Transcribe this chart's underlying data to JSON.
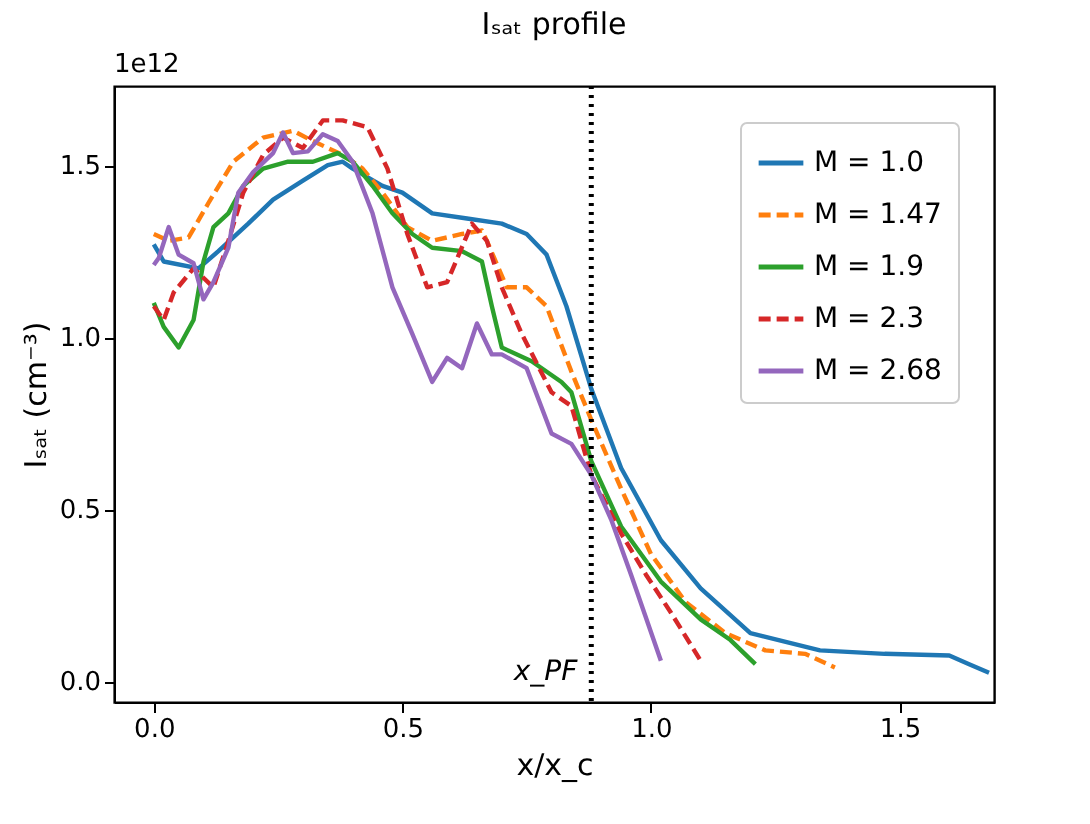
{
  "chart_data": {
    "type": "line",
    "title": "Iₛₐₜ profile",
    "xlabel": "x/x_c",
    "ylabel": "Iₛₐₜ (cm⁻³)",
    "xlim": [
      -0.08,
      1.69
    ],
    "ylim": [
      -0.06,
      1.73
    ],
    "xticks": [
      {
        "value": 0,
        "label": "0.0"
      },
      0.5,
      {
        "value": 1,
        "label": "1.0"
      },
      1.5
    ],
    "yticks": [
      {
        "value": 0,
        "label": "0.0"
      },
      0.5,
      {
        "value": 1,
        "label": "1.0"
      },
      1.5
    ],
    "grid": false,
    "legend": "top right",
    "marker": "none",
    "annotations": [
      "1e12"
    ],
    "ref_lines": [
      {
        "axis": "x",
        "value": 0.88,
        "label": "x_PF",
        "color": "#000000",
        "line_style": "dotted"
      }
    ],
    "series": [
      {
        "name": "M = 1.0",
        "color": "#1f77b4",
        "line_style": "solid",
        "x": [
          0,
          0.02,
          0.09,
          0.13,
          0.19,
          0.24,
          0.3,
          0.35,
          0.38,
          0.4,
          0.46,
          0.5,
          0.56,
          0.63,
          0.7,
          0.75,
          0.79,
          0.83,
          0.88,
          0.94,
          1.02,
          1.1,
          1.2,
          1.34,
          1.47,
          1.6,
          1.64,
          1.68
        ],
        "values": [
          1.27,
          1.22,
          1.2,
          1.25,
          1.33,
          1.4,
          1.455,
          1.5,
          1.51,
          1.49,
          1.44,
          1.42,
          1.36,
          1.345,
          1.33,
          1.3,
          1.24,
          1.09,
          0.85,
          0.62,
          0.41,
          0.27,
          0.14,
          0.09,
          0.08,
          0.075,
          0.05,
          0.025
        ]
      },
      {
        "name": "M = 1.47",
        "color": "#ff7f0e",
        "line_style": "dashed",
        "x": [
          0,
          0.03,
          0.07,
          0.11,
          0.16,
          0.22,
          0.28,
          0.32,
          0.38,
          0.42,
          0.46,
          0.51,
          0.56,
          0.62,
          0.66,
          0.67,
          0.71,
          0.75,
          0.79,
          0.84,
          0.88,
          0.94,
          1.0,
          1.07,
          1.15,
          1.23,
          1.31,
          1.37
        ],
        "values": [
          1.3,
          1.28,
          1.29,
          1.39,
          1.51,
          1.58,
          1.6,
          1.57,
          1.53,
          1.49,
          1.42,
          1.32,
          1.28,
          1.3,
          1.31,
          1.28,
          1.145,
          1.145,
          1.09,
          0.9,
          0.76,
          0.56,
          0.37,
          0.23,
          0.14,
          0.09,
          0.08,
          0.04
        ]
      },
      {
        "name": "M = 1.9",
        "color": "#2ca02c",
        "line_style": "solid",
        "x": [
          0,
          0.02,
          0.05,
          0.08,
          0.1,
          0.12,
          0.15,
          0.18,
          0.22,
          0.27,
          0.32,
          0.37,
          0.4,
          0.44,
          0.48,
          0.52,
          0.56,
          0.62,
          0.66,
          0.68,
          0.7,
          0.76,
          0.82,
          0.84,
          0.88,
          0.94,
          1.02,
          1.1,
          1.16,
          1.21
        ],
        "values": [
          1.1,
          1.03,
          0.97,
          1.05,
          1.22,
          1.32,
          1.36,
          1.44,
          1.49,
          1.51,
          1.51,
          1.535,
          1.51,
          1.44,
          1.36,
          1.3,
          1.26,
          1.25,
          1.22,
          1.09,
          0.97,
          0.93,
          0.87,
          0.84,
          0.64,
          0.45,
          0.29,
          0.18,
          0.12,
          0.05
        ]
      },
      {
        "name": "M = 2.3",
        "color": "#d62728",
        "line_style": "dashed",
        "x": [
          0,
          0.02,
          0.04,
          0.08,
          0.12,
          0.15,
          0.18,
          0.22,
          0.26,
          0.3,
          0.34,
          0.38,
          0.43,
          0.47,
          0.51,
          0.55,
          0.59,
          0.64,
          0.67,
          0.7,
          0.74,
          0.8,
          0.84,
          0.88,
          0.94,
          0.99,
          1.04,
          1.1
        ],
        "values": [
          1.09,
          1.05,
          1.13,
          1.2,
          1.145,
          1.28,
          1.42,
          1.53,
          1.58,
          1.55,
          1.63,
          1.63,
          1.61,
          1.49,
          1.3,
          1.145,
          1.16,
          1.33,
          1.28,
          1.145,
          1.01,
          0.84,
          0.8,
          0.6,
          0.43,
          0.31,
          0.2,
          0.06
        ]
      },
      {
        "name": "M = 2.68",
        "color": "#9467bd",
        "line_style": "solid",
        "x": [
          0,
          0.01,
          0.03,
          0.05,
          0.08,
          0.1,
          0.12,
          0.15,
          0.17,
          0.2,
          0.24,
          0.26,
          0.28,
          0.31,
          0.34,
          0.37,
          0.4,
          0.44,
          0.48,
          0.52,
          0.56,
          0.59,
          0.62,
          0.65,
          0.68,
          0.7,
          0.75,
          0.8,
          0.84,
          0.88,
          0.92,
          0.96,
          1.02
        ],
        "values": [
          1.21,
          1.23,
          1.32,
          1.24,
          1.215,
          1.11,
          1.16,
          1.26,
          1.42,
          1.48,
          1.535,
          1.595,
          1.535,
          1.54,
          1.59,
          1.57,
          1.51,
          1.36,
          1.145,
          1.01,
          0.87,
          0.94,
          0.91,
          1.04,
          0.95,
          0.95,
          0.91,
          0.72,
          0.69,
          0.6,
          0.47,
          0.31,
          0.06
        ]
      }
    ]
  }
}
